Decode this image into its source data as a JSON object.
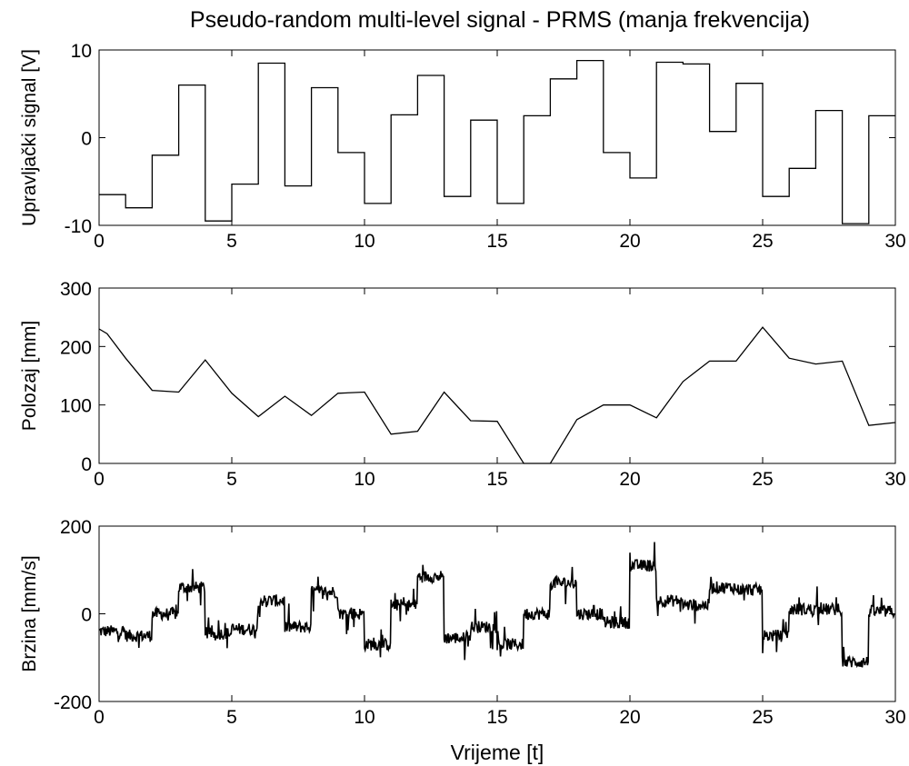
{
  "figure": {
    "title": "Pseudo-random multi-level signal - PRMS (manja frekvencija)",
    "xlabel": "Vrijeme [t]"
  },
  "chart_data": [
    {
      "type": "line",
      "step": true,
      "ylabel": "Upravljački signal [V]",
      "xlim": [
        0,
        30
      ],
      "ylim": [
        -10,
        10
      ],
      "xticks": [
        "0",
        "5",
        "10",
        "15",
        "20",
        "25",
        "30"
      ],
      "yticks": [
        "-10",
        "0",
        "10"
      ],
      "grid": false,
      "x": [
        0,
        1,
        2,
        3,
        4,
        5,
        6,
        7,
        8,
        9,
        10,
        11,
        12,
        13,
        14,
        15,
        16,
        17,
        18,
        19,
        20,
        21,
        22,
        23,
        24,
        25,
        26,
        27,
        28,
        29,
        30
      ],
      "y": [
        -6.5,
        -8,
        -2,
        6,
        -9.5,
        -5.3,
        8.5,
        -5.5,
        5.7,
        -1.7,
        -7.5,
        2.6,
        7.1,
        -6.7,
        2,
        -7.5,
        2.5,
        6.7,
        8.8,
        -1.7,
        -4.6,
        8.6,
        8.4,
        0.7,
        6.2,
        -6.7,
        -3.5,
        3.1,
        -9.8,
        2.5,
        2.5
      ]
    },
    {
      "type": "line",
      "ylabel": "Polozaj [mm]",
      "xlim": [
        0,
        30
      ],
      "ylim": [
        0,
        300
      ],
      "xticks": [
        "0",
        "5",
        "10",
        "15",
        "20",
        "25",
        "30"
      ],
      "yticks": [
        "0",
        "100",
        "200",
        "300"
      ],
      "grid": false,
      "x": [
        0,
        0.3,
        1,
        2,
        3,
        4,
        5,
        6,
        7,
        8,
        9,
        10,
        11,
        12,
        13,
        14,
        15,
        16,
        17,
        18,
        19,
        20,
        21,
        22,
        23,
        24,
        25,
        26,
        27,
        28,
        29,
        30
      ],
      "y": [
        230,
        222,
        180,
        125,
        122,
        177,
        120,
        80,
        115,
        82,
        120,
        122,
        50,
        55,
        122,
        73,
        72,
        0,
        0,
        75,
        100,
        100,
        78,
        140,
        175,
        175,
        233,
        180,
        170,
        175,
        65,
        70
      ]
    },
    {
      "type": "line",
      "noisy": true,
      "ylabel": "Brzina [mm/s]",
      "xlim": [
        0,
        30
      ],
      "ylim": [
        -200,
        200
      ],
      "xticks": [
        "0",
        "5",
        "10",
        "15",
        "20",
        "25",
        "30"
      ],
      "yticks": [
        "-200",
        "0",
        "200"
      ],
      "grid": false,
      "x": [
        0,
        1,
        2,
        3,
        4,
        5,
        6,
        7,
        8,
        9,
        10,
        11,
        12,
        13,
        14,
        15,
        16,
        17,
        18,
        19,
        20,
        21,
        22,
        23,
        24,
        25,
        26,
        27,
        28,
        29,
        30
      ],
      "y": [
        -40,
        -50,
        0,
        60,
        -45,
        -35,
        30,
        -30,
        50,
        0,
        -70,
        20,
        85,
        -55,
        -30,
        -70,
        0,
        70,
        0,
        -20,
        110,
        30,
        20,
        60,
        55,
        -50,
        10,
        10,
        -110,
        5,
        5
      ]
    }
  ]
}
